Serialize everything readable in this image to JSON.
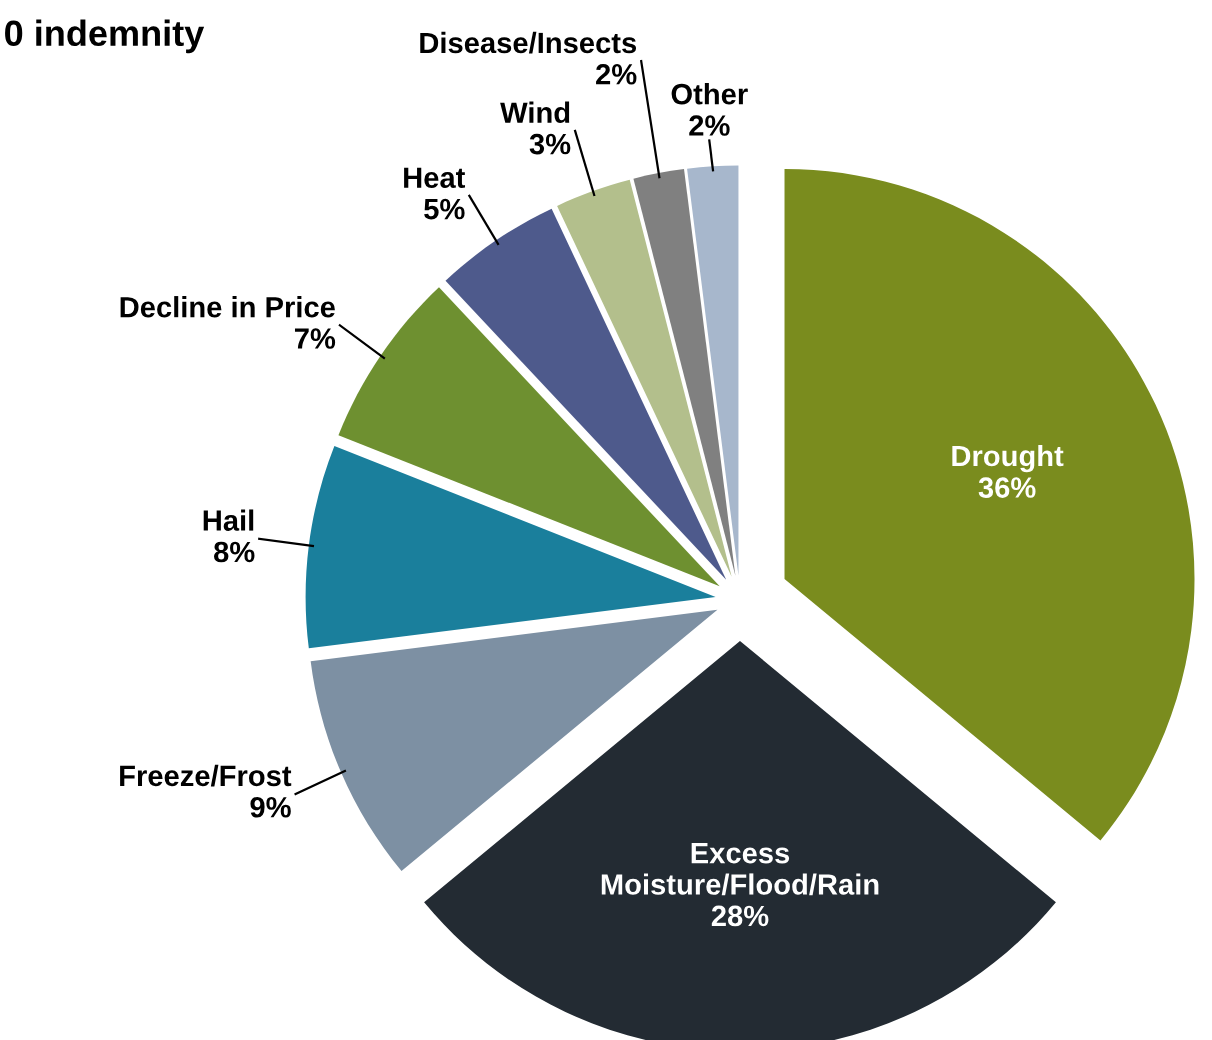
{
  "chart_data": {
    "type": "pie",
    "title": "0 indemnity",
    "categories": [
      "Drought",
      "Excess\nMoisture/Flood/Rain",
      "Freeze/Frost",
      "Hail",
      "Decline in Price",
      "Heat",
      "Wind",
      "Disease/Insects",
      "Other"
    ],
    "values": [
      36,
      28,
      9,
      8,
      7,
      5,
      3,
      2,
      2
    ],
    "value_labels": [
      "36%",
      "28%",
      "9%",
      "8%",
      "7%",
      "5%",
      "3%",
      "2%",
      "2%"
    ],
    "colors": [
      "#7a8c1e",
      "#232b33",
      "#7d90a3",
      "#1a7f9c",
      "#6e9030",
      "#4e5a8c",
      "#b3bf8c",
      "#808080",
      "#a7b7cc"
    ]
  }
}
